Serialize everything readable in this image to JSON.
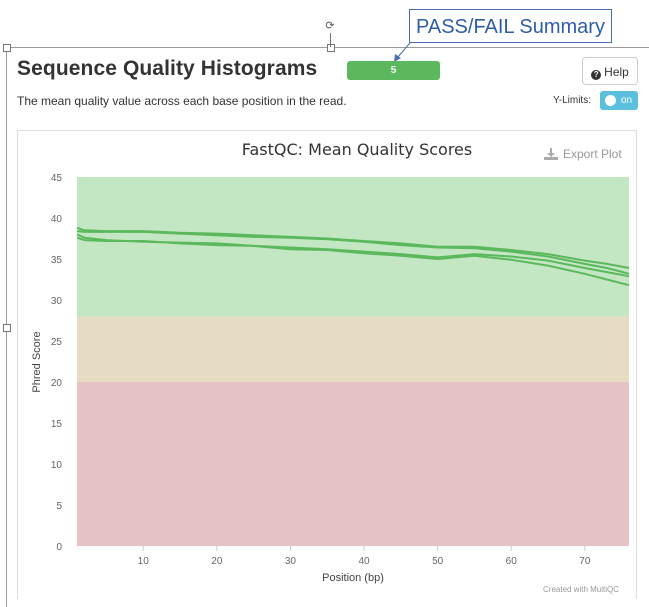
{
  "callout": {
    "text": "PASS/FAIL Summary"
  },
  "header": {
    "title": "Sequence Quality Histograms",
    "badge": "5",
    "help_label": "Help",
    "description": "The mean quality value across each base position in the read.",
    "ylimits_label": "Y-Limits:",
    "toggle_label": "on"
  },
  "plot": {
    "export_label": "Export Plot",
    "credit": "Created with MultiQC"
  },
  "colors": {
    "zone_good": "#c3e6c3",
    "zone_warn": "#e6dcc3",
    "zone_bad": "#e6c3c3",
    "line": "#5cb85c",
    "badge": "#5cb85c",
    "toggle": "#5bc0de",
    "callout": "#2e5da8"
  },
  "chart_data": {
    "type": "line",
    "title": "FastQC: Mean Quality Scores",
    "xlabel": "Position (bp)",
    "ylabel": "Phred Score",
    "xlim": [
      1,
      76
    ],
    "ylim": [
      0,
      45
    ],
    "xticks": [
      10,
      20,
      30,
      40,
      50,
      60,
      70
    ],
    "yticks": [
      0,
      5,
      10,
      15,
      20,
      25,
      30,
      35,
      40,
      45
    ],
    "zones": [
      {
        "from": 28,
        "to": 45,
        "color": "#c3e6c3"
      },
      {
        "from": 20,
        "to": 28,
        "color": "#e6dcc3"
      },
      {
        "from": 0,
        "to": 20,
        "color": "#e6c3c3"
      }
    ],
    "x": [
      1,
      2,
      5,
      10,
      15,
      20,
      25,
      30,
      35,
      40,
      45,
      50,
      55,
      60,
      65,
      70,
      73,
      76
    ],
    "series": [
      {
        "values": [
          38.8,
          38.5,
          38.4,
          38.4,
          38.2,
          38.1,
          37.9,
          37.7,
          37.5,
          37.2,
          36.9,
          36.5,
          36.5,
          36.1,
          35.6,
          34.8,
          34.4,
          33.9
        ]
      },
      {
        "values": [
          38.4,
          38.3,
          38.3,
          38.3,
          38.1,
          37.9,
          37.7,
          37.6,
          37.4,
          37.1,
          36.7,
          36.4,
          36.3,
          35.9,
          35.3,
          34.4,
          33.9,
          33.2
        ]
      },
      {
        "values": [
          38.0,
          37.6,
          37.3,
          37.1,
          37.0,
          36.9,
          36.6,
          36.4,
          36.2,
          35.9,
          35.6,
          35.2,
          35.6,
          35.3,
          34.8,
          33.9,
          33.4,
          32.9
        ]
      },
      {
        "values": [
          37.6,
          37.3,
          37.2,
          37.2,
          36.9,
          36.7,
          36.6,
          36.2,
          36.1,
          35.7,
          35.4,
          35.0,
          35.4,
          34.9,
          34.2,
          33.2,
          32.5,
          31.8
        ]
      }
    ]
  }
}
